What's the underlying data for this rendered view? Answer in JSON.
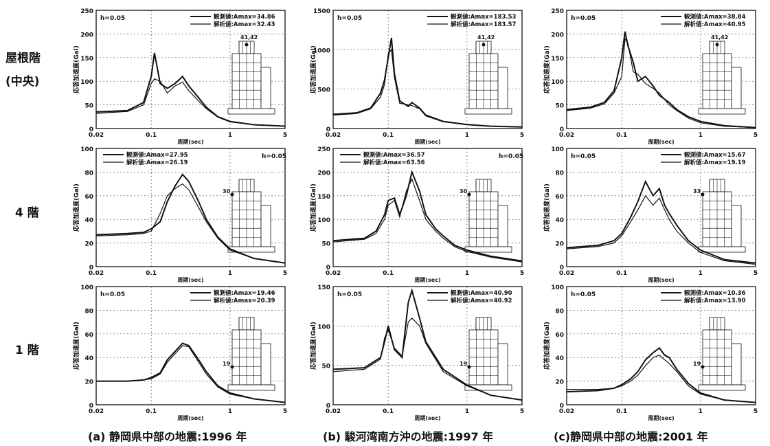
{
  "row_labels": [
    "屋根階",
    "(中央)",
    "4 階",
    "1 階"
  ],
  "captions": [
    "(a) 静岡県中部の地震:1996 年",
    "(b) 駿河湾南方沖の地震:1997 年",
    "(c)静岡県中部の地震:2001 年"
  ],
  "colors": {
    "measured": "#111111",
    "analysis": "#111111"
  },
  "chart_data": [
    {
      "type": "line",
      "panel": "a-roof",
      "damping": "h=0.05",
      "legend": [
        "観測値:Amax=34.86",
        "解析値:Amax=32.43"
      ],
      "ylabel": "応答加速度(Gal)",
      "xlabel": "周期(sec)",
      "xscale": "log",
      "xlim": [
        0.02,
        5
      ],
      "ylim": [
        0,
        250
      ],
      "yticks": [
        0,
        50,
        100,
        150,
        200,
        250
      ],
      "xticklabels": [
        "0.02",
        "0.1",
        "1",
        "5"
      ],
      "floor_label": "41,42",
      "floor_marker": "roof",
      "legend_pos": "top-right",
      "series": [
        {
          "x": [
            0.02,
            0.05,
            0.08,
            0.1,
            0.11,
            0.13,
            0.16,
            0.2,
            0.25,
            0.3,
            0.4,
            0.5,
            0.7,
            1,
            2,
            5
          ],
          "y": [
            35,
            38,
            55,
            110,
            160,
            95,
            85,
            95,
            110,
            90,
            65,
            45,
            25,
            15,
            8,
            5
          ]
        },
        {
          "x": [
            0.02,
            0.05,
            0.08,
            0.1,
            0.11,
            0.13,
            0.16,
            0.2,
            0.25,
            0.3,
            0.4,
            0.5,
            0.7,
            1,
            2,
            5
          ],
          "y": [
            32,
            36,
            50,
            95,
            105,
            100,
            75,
            90,
            98,
            80,
            58,
            42,
            24,
            14,
            8,
            5
          ]
        }
      ]
    },
    {
      "type": "line",
      "panel": "b-roof",
      "damping": "h=0.05",
      "legend": [
        "観測値:Amax=183.53",
        "解析値:Amax=183.57"
      ],
      "ylabel": "応答加速度(Gal)",
      "xlabel": "周期(sec)",
      "xscale": "log",
      "xlim": [
        0.02,
        5
      ],
      "ylim": [
        0,
        1500
      ],
      "yticks": [
        0,
        500,
        1000,
        1500
      ],
      "xticklabels": [
        "0.02",
        "0.1",
        "1",
        "5"
      ],
      "floor_label": "41,42",
      "floor_marker": "roof",
      "legend_pos": "top-right",
      "series": [
        {
          "x": [
            0.02,
            0.04,
            0.06,
            0.08,
            0.09,
            0.1,
            0.11,
            0.12,
            0.14,
            0.18,
            0.2,
            0.25,
            0.3,
            0.5,
            1,
            2,
            5
          ],
          "y": [
            180,
            200,
            260,
            450,
            620,
            900,
            1150,
            700,
            350,
            280,
            330,
            260,
            170,
            90,
            50,
            30,
            20
          ]
        },
        {
          "x": [
            0.02,
            0.04,
            0.06,
            0.08,
            0.09,
            0.1,
            0.11,
            0.12,
            0.14,
            0.18,
            0.2,
            0.25,
            0.3,
            0.5,
            1,
            2,
            5
          ],
          "y": [
            170,
            190,
            250,
            400,
            560,
            950,
            1000,
            650,
            320,
            300,
            290,
            250,
            160,
            85,
            48,
            28,
            18
          ]
        }
      ]
    },
    {
      "type": "line",
      "panel": "c-roof",
      "damping": "h=0.05",
      "legend": [
        "観測値:Amax=38.84",
        "解析値:Amax=40.95"
      ],
      "ylabel": "応答加速度(Gal)",
      "xlabel": "周期(sec)",
      "xscale": "log",
      "xlim": [
        0.02,
        5
      ],
      "ylim": [
        0,
        250
      ],
      "yticks": [
        0,
        50,
        100,
        150,
        200,
        250
      ],
      "xticklabels": [
        "0.02",
        "0.1",
        "1",
        "5"
      ],
      "floor_label": "41,42",
      "floor_marker": "roof",
      "legend_pos": "top-right",
      "series": [
        {
          "x": [
            0.02,
            0.04,
            0.06,
            0.08,
            0.1,
            0.11,
            0.12,
            0.14,
            0.16,
            0.2,
            0.25,
            0.3,
            0.4,
            0.5,
            0.7,
            1,
            2,
            5
          ],
          "y": [
            40,
            45,
            55,
            80,
            150,
            205,
            175,
            140,
            100,
            110,
            90,
            70,
            55,
            40,
            25,
            15,
            6,
            2
          ]
        },
        {
          "x": [
            0.02,
            0.04,
            0.06,
            0.08,
            0.1,
            0.11,
            0.12,
            0.14,
            0.16,
            0.2,
            0.25,
            0.3,
            0.4,
            0.5,
            0.7,
            1,
            2,
            5
          ],
          "y": [
            38,
            43,
            52,
            75,
            110,
            190,
            180,
            120,
            115,
            95,
            85,
            75,
            50,
            38,
            22,
            12,
            5,
            2
          ]
        }
      ]
    },
    {
      "type": "line",
      "panel": "a-4F",
      "damping": "h=0.05",
      "legend": [
        "観測値:Amax=27.95",
        "解析値:Amax=26.19"
      ],
      "ylabel": "応答加速度(Gal)",
      "xlabel": "周期(sec)",
      "xscale": "log",
      "xlim": [
        0.02,
        5
      ],
      "ylim": [
        0,
        100
      ],
      "yticks": [
        0,
        20,
        40,
        60,
        80,
        100
      ],
      "xticklabels": [
        "0.02",
        "0.1",
        "1",
        "5"
      ],
      "floor_label": "30",
      "floor_marker": "mid",
      "legend_pos": "top-left",
      "series": [
        {
          "x": [
            0.02,
            0.05,
            0.08,
            0.1,
            0.13,
            0.16,
            0.2,
            0.25,
            0.3,
            0.4,
            0.5,
            0.7,
            1,
            2,
            5
          ],
          "y": [
            27,
            28,
            29,
            32,
            38,
            55,
            68,
            78,
            72,
            55,
            40,
            25,
            15,
            7,
            3
          ]
        },
        {
          "x": [
            0.02,
            0.05,
            0.08,
            0.1,
            0.13,
            0.16,
            0.2,
            0.25,
            0.3,
            0.4,
            0.5,
            0.7,
            1,
            2,
            5
          ],
          "y": [
            26,
            27,
            28,
            30,
            45,
            60,
            66,
            70,
            65,
            50,
            38,
            24,
            14,
            7,
            3
          ]
        }
      ]
    },
    {
      "type": "line",
      "panel": "b-4F",
      "damping": "h=0.05",
      "legend": [
        "観測値:Amax=36.57",
        "解析値:Amax=63.56"
      ],
      "ylabel": "応答加速度(Gal)",
      "xlabel": "周期(sec)",
      "xscale": "log",
      "xlim": [
        0.02,
        5
      ],
      "ylim": [
        0,
        250
      ],
      "yticks": [
        0,
        50,
        100,
        150,
        200,
        250
      ],
      "xticklabels": [
        "0.02",
        "0.1",
        "1",
        "5"
      ],
      "floor_label": "30",
      "floor_marker": "mid",
      "legend_pos": "top-left",
      "series": [
        {
          "x": [
            0.02,
            0.05,
            0.07,
            0.09,
            0.1,
            0.12,
            0.14,
            0.17,
            0.2,
            0.25,
            0.3,
            0.4,
            0.5,
            0.7,
            1,
            2,
            5
          ],
          "y": [
            55,
            60,
            75,
            110,
            140,
            145,
            110,
            150,
            200,
            160,
            110,
            80,
            65,
            45,
            35,
            22,
            12
          ]
        },
        {
          "x": [
            0.02,
            0.05,
            0.07,
            0.09,
            0.1,
            0.12,
            0.14,
            0.17,
            0.2,
            0.25,
            0.3,
            0.4,
            0.5,
            0.7,
            1,
            2,
            5
          ],
          "y": [
            52,
            58,
            70,
            100,
            130,
            140,
            105,
            160,
            185,
            140,
            100,
            75,
            60,
            42,
            32,
            20,
            10
          ]
        }
      ]
    },
    {
      "type": "line",
      "panel": "c-4F",
      "damping": "h=0.05",
      "legend": [
        "観測値:Amax=15.67",
        "解析値:Amax=19.19"
      ],
      "ylabel": "応答加速度(Gal)",
      "xlabel": "周期(sec)",
      "xscale": "log",
      "xlim": [
        0.02,
        5
      ],
      "ylim": [
        0,
        100
      ],
      "yticks": [
        0,
        20,
        40,
        60,
        80,
        100
      ],
      "xticklabels": [
        "0.02",
        "0.1",
        "1",
        "5"
      ],
      "floor_label": "33",
      "floor_marker": "mid",
      "legend_pos": "top-right",
      "series": [
        {
          "x": [
            0.02,
            0.05,
            0.08,
            0.1,
            0.13,
            0.16,
            0.2,
            0.25,
            0.3,
            0.35,
            0.4,
            0.5,
            0.7,
            1,
            2,
            5
          ],
          "y": [
            16,
            18,
            22,
            28,
            42,
            55,
            72,
            60,
            66,
            52,
            45,
            35,
            22,
            14,
            6,
            3
          ]
        },
        {
          "x": [
            0.02,
            0.05,
            0.08,
            0.1,
            0.13,
            0.16,
            0.2,
            0.25,
            0.3,
            0.35,
            0.4,
            0.5,
            0.7,
            1,
            2,
            5
          ],
          "y": [
            15,
            17,
            20,
            26,
            38,
            48,
            60,
            52,
            58,
            48,
            40,
            30,
            20,
            12,
            5,
            2
          ]
        }
      ]
    },
    {
      "type": "line",
      "panel": "a-1F",
      "damping": "h=0.05",
      "legend": [
        "観測値:Amax=19.46",
        "解析値:Amax=20.39"
      ],
      "ylabel": "応答加速度(Gal)",
      "xlabel": "周期(sec)",
      "xscale": "log",
      "xlim": [
        0.02,
        5
      ],
      "ylim": [
        0,
        100
      ],
      "yticks": [
        0,
        20,
        40,
        60,
        80,
        100
      ],
      "xticklabels": [
        "0.02",
        "0.1",
        "1",
        "5"
      ],
      "floor_label": "19",
      "floor_marker": "low",
      "legend_pos": "top-right",
      "series": [
        {
          "x": [
            0.02,
            0.05,
            0.08,
            0.1,
            0.13,
            0.16,
            0.2,
            0.25,
            0.3,
            0.4,
            0.5,
            0.7,
            1,
            2,
            5
          ],
          "y": [
            20,
            20,
            21,
            23,
            27,
            38,
            45,
            52,
            50,
            38,
            28,
            16,
            10,
            5,
            2
          ]
        },
        {
          "x": [
            0.02,
            0.05,
            0.08,
            0.1,
            0.13,
            0.16,
            0.2,
            0.25,
            0.3,
            0.4,
            0.5,
            0.7,
            1,
            2,
            5
          ],
          "y": [
            20,
            20,
            21,
            22,
            26,
            36,
            43,
            50,
            49,
            36,
            26,
            15,
            9,
            5,
            2
          ]
        }
      ]
    },
    {
      "type": "line",
      "panel": "b-1F",
      "damping": "h=0.05",
      "legend": [
        "観測値:Amax=40.90",
        "解析値:Amax=40.92"
      ],
      "ylabel": "応答加速度(Gal)",
      "xlabel": "周期(sec)",
      "xscale": "log",
      "xlim": [
        0.02,
        5
      ],
      "ylim": [
        0,
        150
      ],
      "yticks": [
        0,
        50,
        100,
        150
      ],
      "xticklabels": [
        "0.02",
        "0.1",
        "1",
        "5"
      ],
      "floor_label": "19",
      "floor_marker": "low",
      "legend_pos": "top-right",
      "series": [
        {
          "x": [
            0.02,
            0.05,
            0.08,
            0.09,
            0.1,
            0.12,
            0.15,
            0.18,
            0.2,
            0.25,
            0.3,
            0.5,
            1,
            2,
            5
          ],
          "y": [
            45,
            47,
            60,
            80,
            100,
            70,
            60,
            130,
            145,
            110,
            80,
            45,
            25,
            12,
            6
          ]
        },
        {
          "x": [
            0.02,
            0.05,
            0.08,
            0.09,
            0.1,
            0.12,
            0.15,
            0.18,
            0.2,
            0.25,
            0.3,
            0.5,
            1,
            2,
            5
          ],
          "y": [
            42,
            45,
            58,
            85,
            95,
            72,
            62,
            105,
            110,
            100,
            78,
            42,
            24,
            12,
            6
          ]
        }
      ]
    },
    {
      "type": "line",
      "panel": "c-1F",
      "damping": "h=0.05",
      "legend": [
        "観測値:Amax=10.36",
        "解析値:Amax=13.90"
      ],
      "ylabel": "応答加速度(Gal)",
      "xlabel": "周期(sec)",
      "xscale": "log",
      "xlim": [
        0.02,
        5
      ],
      "ylim": [
        0,
        100
      ],
      "yticks": [
        0,
        20,
        40,
        60,
        80,
        100
      ],
      "xticklabels": [
        "0.02",
        "0.1",
        "1",
        "5"
      ],
      "floor_label": "19",
      "floor_marker": "low",
      "legend_pos": "top-right",
      "series": [
        {
          "x": [
            0.02,
            0.05,
            0.08,
            0.1,
            0.13,
            0.16,
            0.2,
            0.25,
            0.3,
            0.35,
            0.4,
            0.5,
            0.7,
            1,
            2,
            5
          ],
          "y": [
            11,
            12,
            14,
            17,
            22,
            28,
            38,
            44,
            48,
            42,
            40,
            30,
            18,
            10,
            4,
            2
          ]
        },
        {
          "x": [
            0.02,
            0.05,
            0.08,
            0.1,
            0.13,
            0.16,
            0.2,
            0.25,
            0.3,
            0.35,
            0.4,
            0.5,
            0.7,
            1,
            2,
            5
          ],
          "y": [
            13,
            13,
            14,
            16,
            20,
            25,
            33,
            40,
            42,
            38,
            35,
            28,
            16,
            9,
            4,
            2
          ]
        }
      ]
    }
  ]
}
